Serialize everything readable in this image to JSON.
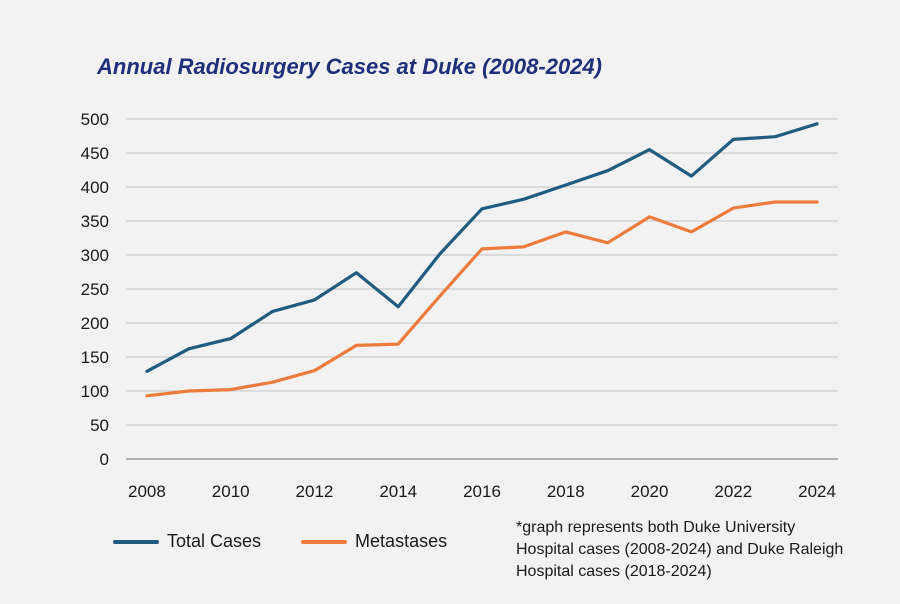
{
  "chart_data": {
    "type": "line",
    "title": "Annual Radiosurgery Cases at Duke (2008-2024)",
    "xlabel": "",
    "ylabel": "",
    "x": [
      2008,
      2009,
      2010,
      2011,
      2012,
      2013,
      2014,
      2015,
      2016,
      2017,
      2018,
      2019,
      2020,
      2021,
      2022,
      2023,
      2024
    ],
    "x_tick_labels": [
      "2008",
      "2010",
      "2012",
      "2014",
      "2016",
      "2018",
      "2020",
      "2022",
      "2024"
    ],
    "x_ticks": [
      2008,
      2010,
      2012,
      2014,
      2016,
      2018,
      2020,
      2022,
      2024
    ],
    "y_ticks": [
      0,
      50,
      100,
      150,
      200,
      250,
      300,
      350,
      400,
      450,
      500
    ],
    "y_tick_labels": [
      "0",
      "50",
      "100",
      "150",
      "200",
      "250",
      "300",
      "350",
      "400",
      "450",
      "500"
    ],
    "ylim": [
      0,
      500
    ],
    "xlim": [
      2008,
      2024
    ],
    "grid": true,
    "legend_position": "bottom-left",
    "series": [
      {
        "name": "Total Cases",
        "color": "#1f5c80",
        "values": [
          129,
          162,
          177,
          217,
          234,
          274,
          224,
          302,
          368,
          382,
          403,
          424,
          455,
          416,
          470,
          474,
          493
        ]
      },
      {
        "name": "Metastases",
        "color": "#ec7b3c",
        "values": [
          93,
          100,
          102,
          113,
          130,
          167,
          169,
          240,
          309,
          312,
          334,
          318,
          356,
          334,
          369,
          378,
          378
        ]
      }
    ],
    "footnote": "*graph represents both Duke University Hospital cases (2008-2024) and Duke Raleigh Hospital cases (2018-2024)"
  }
}
